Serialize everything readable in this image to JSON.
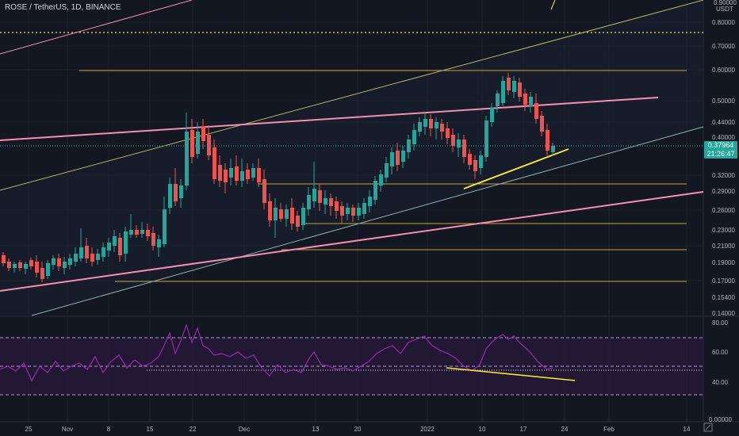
{
  "header": {
    "symbol_title": "ROSE / TetherUS, 1D, BINANCE",
    "top_axis_partial": "0.90000",
    "currency": "USDT"
  },
  "price_axis": {
    "labels": [
      "0.80000",
      "0.70000",
      "0.60000",
      "0.50000",
      "0.44000",
      "0.40000",
      "0.32000",
      "0.29000",
      "0.26000",
      "0.23000",
      "0.21000",
      "0.19000",
      "0.17000",
      "0.15400",
      "0.14000"
    ]
  },
  "last_price": {
    "value": "0.37964",
    "countdown": "21:26:47",
    "color": "#26a69a"
  },
  "rsi_axis": {
    "labels": [
      "80.00",
      "60.00",
      "40.00",
      "0.00000"
    ]
  },
  "time_axis": {
    "labels": [
      "25",
      "Nov",
      "8",
      "15",
      "22",
      "Dec",
      "13",
      "20",
      "2022",
      "10",
      "17",
      "24",
      "Feb",
      "14"
    ]
  },
  "colors": {
    "background": "#131722",
    "candle_up": "#26a69a",
    "candle_down": "#ef5350",
    "horizontal_levels": "#c8a13a",
    "pink_lines": "#f48fb1",
    "channel_line": "#b8b36a",
    "yellow_trend": "#f5e642",
    "rsi_line": "#9c27b0",
    "rsi_band": "#2a1a3a"
  },
  "icons": [
    "scale-toggle-icon"
  ]
}
